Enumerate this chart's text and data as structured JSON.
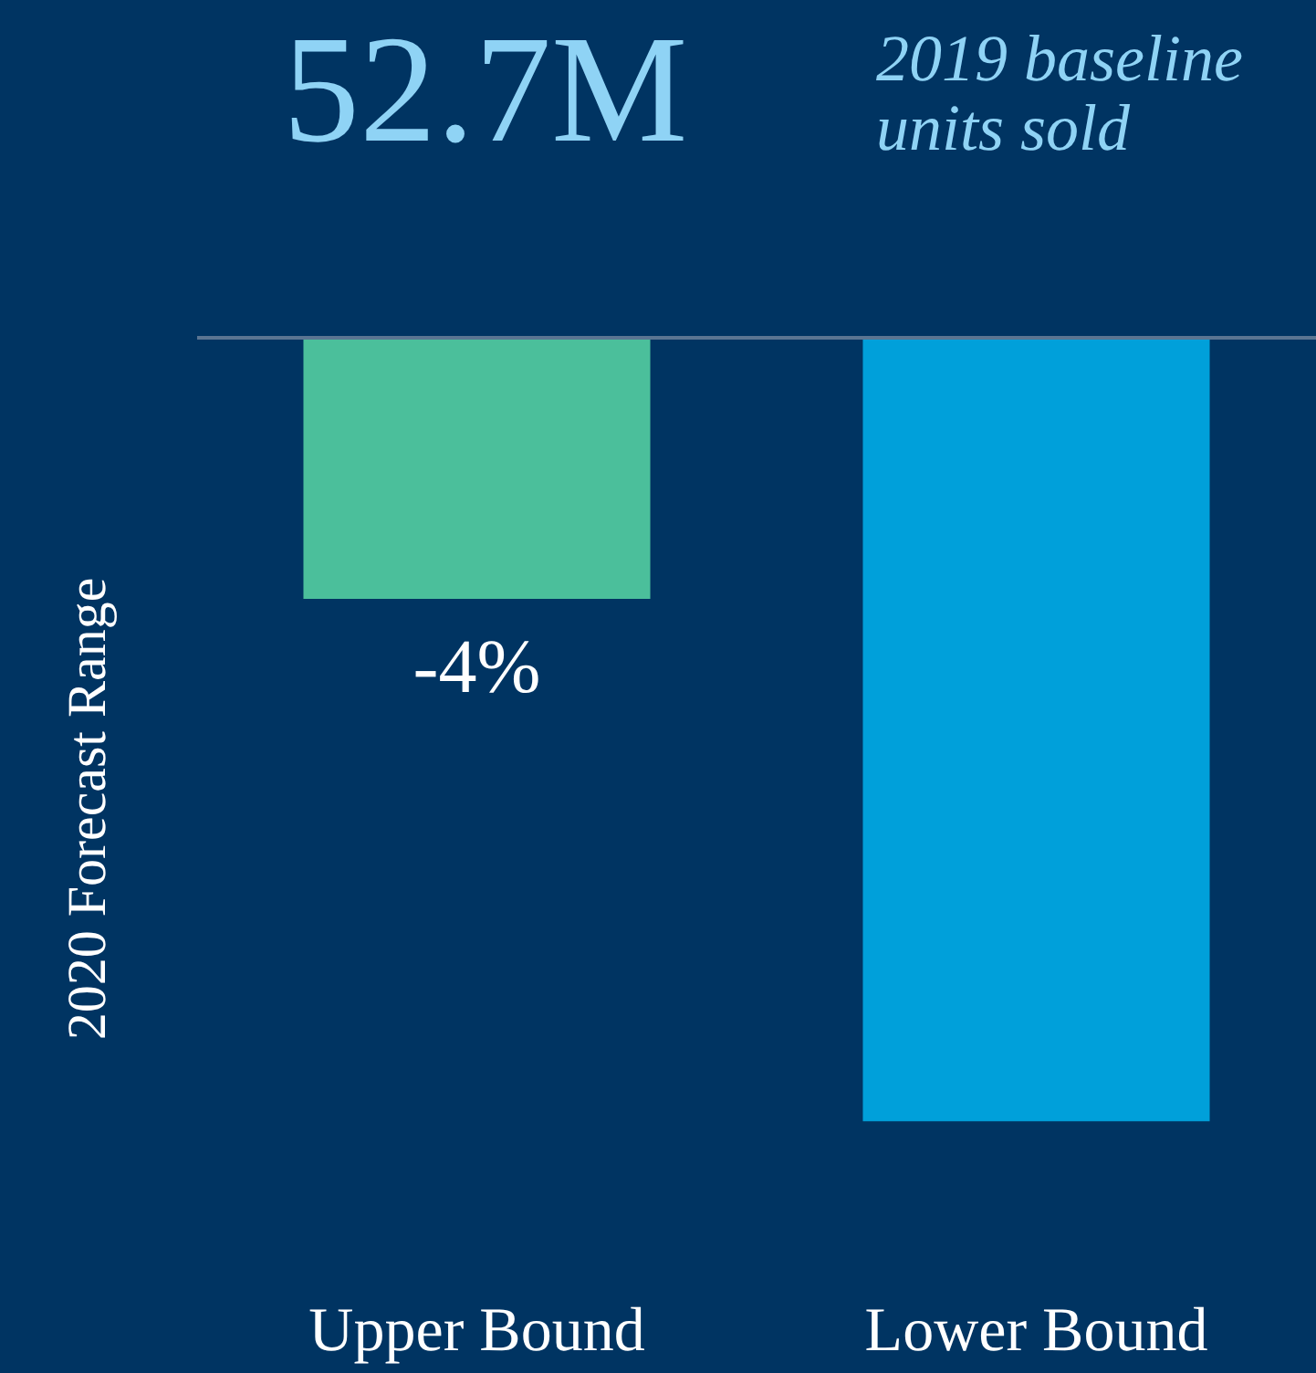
{
  "chart_data": {
    "type": "bar",
    "title": "52.7M",
    "subtitle": "2019 baseline\nunits sold",
    "ylabel": "2020 Forecast Range",
    "categories": [
      "Upper Bound",
      "Lower Bound"
    ],
    "values": [
      -4,
      -12
    ],
    "colors": [
      "#4bbf9b",
      "#00a0da"
    ],
    "value_labels": [
      "-4%",
      null
    ]
  }
}
